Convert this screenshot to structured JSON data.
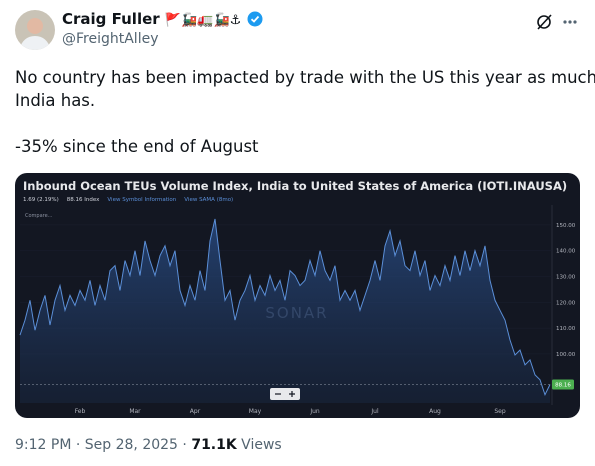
{
  "author": {
    "name": "Craig Fuller",
    "emojis": "🚩🚂🚛🚂⚓",
    "handle": "@FreightAlley"
  },
  "tweet": {
    "paragraphs": [
      [
        "No country has been impacted by trade with the US this year as much as",
        "India has."
      ],
      [
        "-35% since the end of August"
      ]
    ]
  },
  "chart_data": {
    "type": "line",
    "title": "Inbound Ocean TEUs Volume Index, India to United States of America (IOTI.INAUSA)",
    "legend_items": [
      "1.69 (2.19%)",
      "88.16 Index",
      "View Symbol Information",
      "View SAMA (8mo)"
    ],
    "compare": "Compare...",
    "watermark": "SONAR",
    "categories": [
      null,
      null,
      null,
      null,
      null,
      null,
      null,
      null,
      null,
      null,
      null,
      null,
      "Feb",
      null,
      null,
      null,
      null,
      null,
      null,
      null,
      null,
      null,
      null,
      "Mar",
      null,
      null,
      null,
      null,
      null,
      null,
      null,
      null,
      null,
      null,
      null,
      "Apr",
      null,
      null,
      null,
      null,
      null,
      null,
      null,
      null,
      null,
      null,
      null,
      "May",
      null,
      null,
      null,
      null,
      null,
      null,
      null,
      null,
      null,
      null,
      null,
      "Jun",
      null,
      null,
      null,
      null,
      null,
      null,
      null,
      null,
      null,
      null,
      null,
      "Jul",
      null,
      null,
      null,
      null,
      null,
      null,
      null,
      null,
      null,
      null,
      null,
      "Aug",
      null,
      null,
      null,
      null,
      null,
      null,
      null,
      null,
      null,
      null,
      null,
      null,
      "Sep",
      null,
      null,
      null,
      null,
      null,
      null,
      null,
      null,
      null,
      null
    ],
    "series": [
      {
        "name": "IOTI.INAUSA",
        "color": "#5b8fd8",
        "values": [
          107.3,
          113.1,
          120.8,
          109.2,
          116.9,
          122.7,
          111.2,
          120.8,
          126.5,
          116.9,
          122.7,
          118.8,
          124.6,
          120.8,
          128.5,
          118.8,
          126.5,
          120.8,
          132.3,
          134.2,
          124.6,
          136.2,
          130.4,
          140,
          130.4,
          143.8,
          136.2,
          130.4,
          138.1,
          141.9,
          134.2,
          140,
          124.6,
          118.8,
          126.5,
          120.8,
          132.3,
          124.6,
          143.8,
          152.3,
          136.2,
          120.8,
          124.6,
          113.1,
          120.8,
          124.6,
          130.4,
          120.8,
          126.5,
          122.7,
          130.4,
          124.6,
          128.5,
          120.8,
          132.3,
          130.4,
          126.5,
          128.5,
          136.2,
          130.4,
          140,
          132.3,
          128.5,
          134.2,
          120.8,
          124.6,
          120.8,
          124.6,
          116.9,
          122.7,
          128.5,
          136.2,
          128.5,
          141.9,
          147.7,
          138.1,
          143.8,
          134.2,
          132.3,
          140,
          130.4,
          136.2,
          124.6,
          130.4,
          126.5,
          134.2,
          128.5,
          138.1,
          130.4,
          140,
          132.3,
          140,
          134.2,
          141.9,
          128.5,
          120.8,
          116.9,
          113.1,
          105.4,
          99.6,
          101.5,
          95.8,
          97.7,
          91.9,
          90,
          84.2,
          88.16
        ]
      }
    ],
    "ylim": [
      81,
      155
    ],
    "yticks": [
      {
        "value": 100,
        "label": "100.00"
      },
      {
        "value": 110,
        "label": "110.00"
      },
      {
        "value": 120,
        "label": "120.00"
      },
      {
        "value": 130,
        "label": "130.00"
      },
      {
        "value": 140,
        "label": "140.00"
      },
      {
        "value": 150,
        "label": "150.00"
      }
    ],
    "last_value_color": "#4caf50"
  },
  "footer": {
    "time": "9:12 PM",
    "separator": "·",
    "date": "Sep 28, 2025",
    "views": "71.1K",
    "views_label": "Views"
  }
}
